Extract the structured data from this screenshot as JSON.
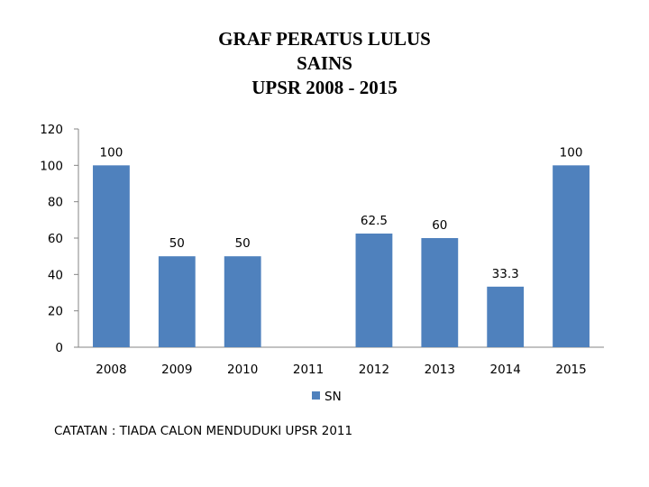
{
  "chart_data": {
    "type": "bar",
    "title": [
      "GRAF PERATUS LULUS",
      "SAINS",
      "UPSR 2008 - 2015"
    ],
    "categories": [
      "2008",
      "2009",
      "2010",
      "2011",
      "2012",
      "2013",
      "2014",
      "2015"
    ],
    "series": [
      {
        "name": "SN",
        "color": "#4F81BD",
        "values": [
          100,
          50,
          50,
          null,
          62.5,
          60,
          33.3,
          100
        ]
      }
    ],
    "data_labels": [
      "100",
      "50",
      "50",
      "",
      "62.5",
      "60",
      "33.3",
      "100"
    ],
    "ylim": [
      0,
      120
    ],
    "yticks": [
      "0",
      "20",
      "40",
      "60",
      "80",
      "100",
      "120"
    ],
    "grid": false,
    "legend_position": "bottom"
  },
  "note": "CATATAN : TIADA CALON MENDUDUKI UPSR 2011"
}
